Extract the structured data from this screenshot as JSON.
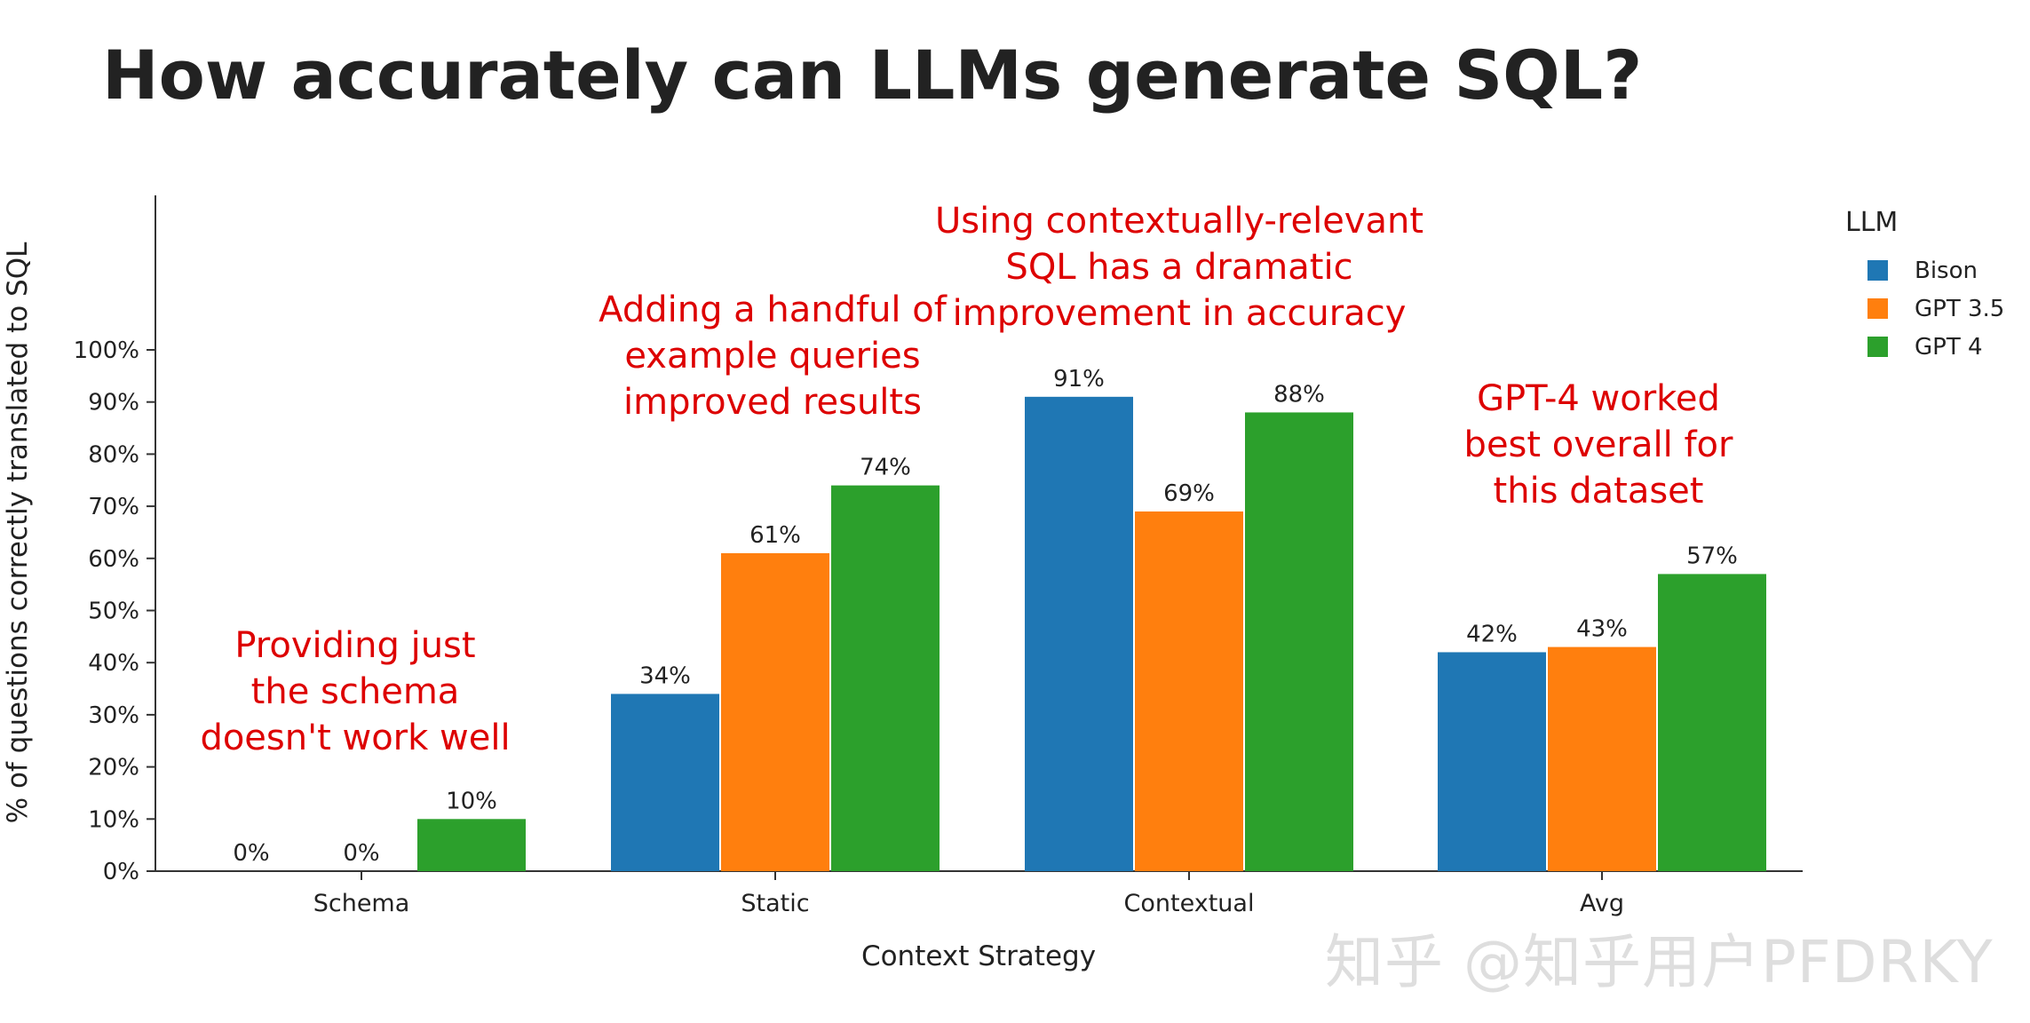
{
  "chart_data": {
    "type": "bar",
    "title": "How accurately can LLMs generate SQL?",
    "xlabel": "Context Strategy",
    "ylabel": "% of questions correctly translated to SQL",
    "categories": [
      "Schema",
      "Static",
      "Contextual",
      "Avg"
    ],
    "series": [
      {
        "name": "Bison",
        "color": "#1f77b4",
        "values": [
          0,
          34,
          91,
          42
        ],
        "labels": [
          "0%",
          "34%",
          "91%",
          "42%"
        ]
      },
      {
        "name": "GPT 3.5",
        "color": "#ff7f0e",
        "values": [
          0,
          61,
          69,
          43
        ],
        "labels": [
          "0%",
          "61%",
          "69%",
          "43%"
        ]
      },
      {
        "name": "GPT 4",
        "color": "#2ca02c",
        "values": [
          10,
          74,
          88,
          57
        ],
        "labels": [
          "10%",
          "74%",
          "88%",
          "57%"
        ]
      }
    ],
    "ylim": [
      0,
      100
    ],
    "yticks": [
      "0%",
      "10%",
      "20%",
      "30%",
      "40%",
      "50%",
      "60%",
      "70%",
      "80%",
      "90%",
      "100%"
    ],
    "legend_title": "LLM",
    "legend_position": "top-right",
    "grid": false,
    "annotations": [
      {
        "category": "Schema",
        "color": "#dd0000",
        "lines": [
          "Providing just",
          "the schema",
          "doesn't work well"
        ]
      },
      {
        "category": "Static",
        "color": "#dd0000",
        "lines": [
          "Adding a handful of",
          "example queries",
          "improved results"
        ]
      },
      {
        "category": "Contextual",
        "color": "#dd0000",
        "lines": [
          "Using contextually-relevant",
          "SQL has a dramatic",
          "improvement in accuracy"
        ]
      },
      {
        "category": "Avg",
        "color": "#dd0000",
        "lines": [
          "GPT-4 worked",
          "best overall for",
          "this dataset"
        ]
      }
    ]
  },
  "watermark": "知乎 @知乎用户PFDRKY"
}
